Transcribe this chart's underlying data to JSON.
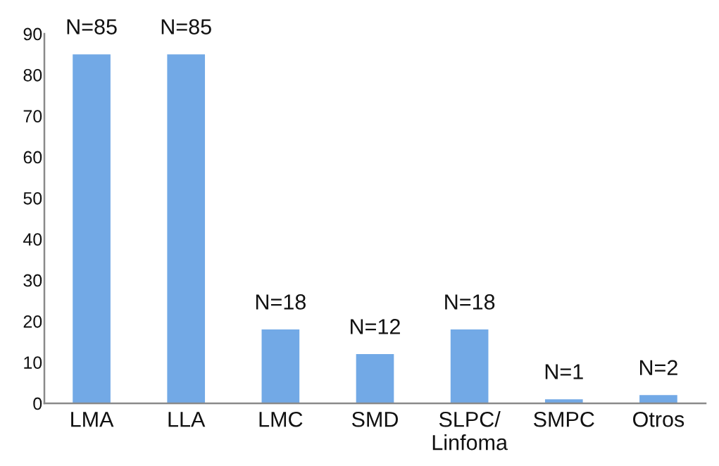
{
  "chart_data": {
    "type": "bar",
    "categories": [
      "LMA",
      "LLA",
      "LMC",
      "SMD",
      "SLPC/\nLinfoma",
      "SMPC",
      "Otros"
    ],
    "values": [
      85,
      85,
      18,
      12,
      18,
      1,
      2
    ],
    "value_labels": [
      "N=85",
      "N=85",
      "N=18",
      "N=12",
      "N=18",
      "N=1",
      "N=2"
    ],
    "color": "#72a9e6",
    "ylim": [
      0,
      90
    ],
    "yticks": [
      0,
      10,
      20,
      30,
      40,
      50,
      60,
      70,
      80,
      90
    ]
  }
}
